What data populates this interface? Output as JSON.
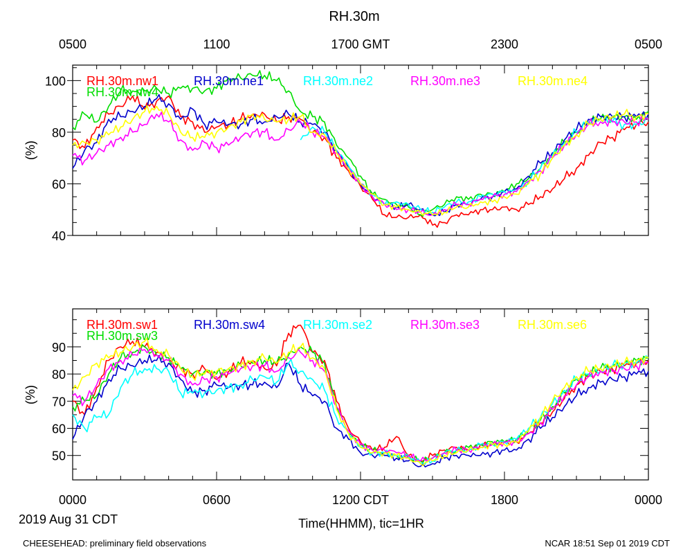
{
  "page": {
    "title": "RH.30m",
    "xlabel": "Time(HHMM), tic=1HR",
    "date_label": "2019 Aug 31 CDT",
    "footer_left": "CHEESEHEAD: preliminary field observations",
    "footer_right": "NCAR 18:51 Sep 01 2019 CDT"
  },
  "axes": {
    "top_ticks": [
      "0500",
      "1100",
      "1700 GMT",
      "2300",
      "0500"
    ],
    "bottom_ticks": [
      "0000",
      "0600",
      "1200 CDT",
      "1800",
      "0000"
    ],
    "x_range_hours": [
      0,
      24
    ],
    "major_tick_hours": [
      0,
      6,
      12,
      18,
      24
    ]
  },
  "chart_data": [
    {
      "type": "line",
      "title": "RH.30m",
      "ylabel": "(%)",
      "ylim": [
        40,
        106
      ],
      "yticks": [
        40,
        60,
        80,
        100
      ],
      "x_hours": [
        0,
        0.5,
        1,
        1.5,
        2,
        2.5,
        3,
        3.5,
        4,
        4.5,
        5,
        5.5,
        6,
        6.5,
        7,
        7.5,
        8,
        8.5,
        9,
        9.5,
        10,
        10.5,
        11,
        11.5,
        12,
        12.5,
        13,
        13.5,
        14,
        14.5,
        15,
        15.5,
        16,
        16.5,
        17,
        17.5,
        18,
        18.5,
        19,
        19.5,
        20,
        20.5,
        21,
        21.5,
        22,
        22.5,
        23,
        23.5,
        24
      ],
      "series": [
        {
          "name": "RH.30m.nw1",
          "color": "#ff0000",
          "values": [
            77,
            74,
            82,
            87,
            90,
            94,
            89,
            92,
            94,
            86,
            84,
            80,
            82,
            83,
            85,
            87,
            87,
            84,
            86,
            85,
            80,
            78,
            70,
            65,
            59,
            54,
            48,
            47,
            47,
            48,
            44,
            45,
            48,
            48,
            50,
            50,
            51,
            50,
            52,
            55,
            58,
            62,
            66,
            71,
            76,
            78,
            81,
            83,
            84
          ]
        },
        {
          "name": "RH.30m.nw4",
          "color": "#00dd00",
          "values": [
            82,
            87,
            84,
            90,
            96,
            96,
            96,
            97,
            95,
            97,
            97,
            96,
            97,
            101,
            101,
            102,
            102,
            100,
            96,
            88,
            86,
            84,
            75,
            70,
            63,
            56,
            54,
            52,
            51,
            48,
            50,
            52,
            55,
            54,
            56,
            56,
            57,
            60,
            62,
            66,
            72,
            76,
            80,
            84,
            85,
            86,
            86,
            85,
            88
          ]
        },
        {
          "name": "RH.30m.ne1",
          "color": "#0000cc",
          "values": [
            66,
            73,
            76,
            85,
            86,
            88,
            90,
            93,
            91,
            85,
            89,
            83,
            84,
            83,
            83,
            85,
            84,
            86,
            87,
            84,
            83,
            80,
            73,
            66,
            60,
            55,
            52,
            51,
            52,
            50,
            48,
            49,
            52,
            52,
            54,
            55,
            57,
            58,
            63,
            68,
            72,
            77,
            81,
            85,
            86,
            86,
            86,
            86,
            87
          ]
        },
        {
          "name": "RH.30m.ne2",
          "color": "#00ffff",
          "values": [
            null,
            null,
            null,
            null,
            null,
            null,
            null,
            null,
            null,
            null,
            null,
            null,
            null,
            null,
            null,
            null,
            null,
            null,
            null,
            77,
            82,
            80,
            73,
            67,
            60,
            56,
            52,
            53,
            52,
            50,
            49,
            51,
            53,
            53,
            55,
            56,
            57,
            57,
            61,
            66,
            71,
            76,
            80,
            84,
            85,
            84,
            83,
            83,
            85
          ]
        },
        {
          "name": "RH.30m.ne3",
          "color": "#ff00ff",
          "values": [
            71,
            69,
            72,
            75,
            78,
            80,
            83,
            87,
            84,
            77,
            73,
            76,
            74,
            75,
            78,
            80,
            80,
            77,
            81,
            84,
            80,
            78,
            72,
            66,
            60,
            55,
            52,
            50,
            50,
            49,
            48,
            50,
            52,
            52,
            54,
            55,
            56,
            57,
            61,
            65,
            70,
            75,
            79,
            83,
            84,
            84,
            84,
            84,
            85
          ]
        },
        {
          "name": "RH.30m.ne4",
          "color": "#ffff00",
          "values": [
            75,
            76,
            77,
            79,
            82,
            85,
            88,
            90,
            87,
            80,
            78,
            78,
            80,
            82,
            84,
            87,
            85,
            84,
            85,
            86,
            80,
            79,
            72,
            66,
            60,
            56,
            52,
            51,
            50,
            49,
            48,
            49,
            51,
            51,
            53,
            53,
            55,
            56,
            60,
            64,
            70,
            75,
            79,
            83,
            85,
            86,
            87,
            86,
            87
          ]
        }
      ]
    },
    {
      "type": "line",
      "title": "RH.30m",
      "ylabel": "(%)",
      "ylim": [
        41,
        104
      ],
      "yticks": [
        50,
        60,
        70,
        80,
        90
      ],
      "x_hours": [
        0,
        0.5,
        1,
        1.5,
        2,
        2.5,
        3,
        3.5,
        4,
        4.5,
        5,
        5.5,
        6,
        6.5,
        7,
        7.5,
        8,
        8.5,
        9,
        9.5,
        10,
        10.5,
        11,
        11.5,
        12,
        12.5,
        13,
        13.5,
        14,
        14.5,
        15,
        15.5,
        16,
        16.5,
        17,
        17.5,
        18,
        18.5,
        19,
        19.5,
        20,
        20.5,
        21,
        21.5,
        22,
        22.5,
        23,
        23.5,
        24
      ],
      "series": [
        {
          "name": "RH.30m.sw1",
          "color": "#ff0000",
          "values": [
            70,
            65,
            75,
            85,
            90,
            92,
            90,
            88,
            85,
            82,
            80,
            82,
            78,
            81,
            84,
            85,
            82,
            83,
            95,
            98,
            88,
            85,
            70,
            60,
            55,
            52,
            53,
            57,
            50,
            48,
            50,
            52,
            53,
            52,
            54,
            54,
            55,
            55,
            58,
            62,
            66,
            71,
            76,
            79,
            81,
            82,
            83,
            84,
            85
          ]
        },
        {
          "name": "RH.30m.sw3",
          "color": "#00dd00",
          "values": [
            68,
            70,
            72,
            80,
            86,
            88,
            90,
            87,
            86,
            82,
            80,
            81,
            80,
            82,
            83,
            84,
            85,
            84,
            87,
            90,
            88,
            84,
            68,
            58,
            54,
            52,
            51,
            50,
            49,
            48,
            49,
            51,
            52,
            53,
            54,
            55,
            55,
            56,
            59,
            63,
            68,
            73,
            78,
            80,
            82,
            83,
            84,
            85,
            86
          ]
        },
        {
          "name": "RH.30m.sw4",
          "color": "#0000cc",
          "values": [
            56,
            65,
            70,
            78,
            82,
            83,
            85,
            85,
            84,
            78,
            73,
            74,
            76,
            75,
            76,
            76,
            77,
            75,
            84,
            76,
            72,
            70,
            60,
            56,
            51,
            50,
            50,
            49,
            48,
            46,
            47,
            49,
            50,
            50,
            50,
            51,
            52,
            52,
            56,
            60,
            64,
            68,
            72,
            75,
            77,
            78,
            79,
            80,
            81
          ]
        },
        {
          "name": "RH.30m.se2",
          "color": "#00ffff",
          "values": [
            65,
            60,
            64,
            65,
            75,
            80,
            82,
            82,
            81,
            73,
            73,
            73,
            74,
            75,
            76,
            78,
            79,
            77,
            84,
            81,
            78,
            74,
            64,
            58,
            53,
            51,
            51,
            50,
            50,
            47,
            48,
            51,
            52,
            52,
            54,
            54,
            55,
            56,
            60,
            64,
            69,
            74,
            78,
            80,
            81,
            83,
            84,
            84,
            86
          ]
        },
        {
          "name": "RH.30m.se3",
          "color": "#ff00ff",
          "values": [
            72,
            70,
            76,
            82,
            85,
            87,
            89,
            87,
            85,
            80,
            76,
            78,
            79,
            80,
            82,
            83,
            83,
            81,
            86,
            88,
            85,
            81,
            68,
            59,
            54,
            52,
            52,
            51,
            50,
            48,
            49,
            51,
            52,
            52,
            53,
            54,
            55,
            55,
            58,
            62,
            67,
            72,
            76,
            79,
            81,
            81,
            82,
            83,
            84
          ]
        },
        {
          "name": "RH.30m.se6",
          "color": "#ffff00",
          "values": [
            74,
            79,
            84,
            86,
            88,
            90,
            92,
            89,
            87,
            82,
            79,
            80,
            81,
            82,
            83,
            85,
            86,
            84,
            88,
            90,
            86,
            82,
            67,
            58,
            53,
            51,
            51,
            50,
            49,
            47,
            48,
            50,
            51,
            52,
            53,
            54,
            54,
            55,
            59,
            64,
            70,
            75,
            79,
            81,
            82,
            83,
            84,
            85,
            86
          ]
        }
      ]
    }
  ]
}
